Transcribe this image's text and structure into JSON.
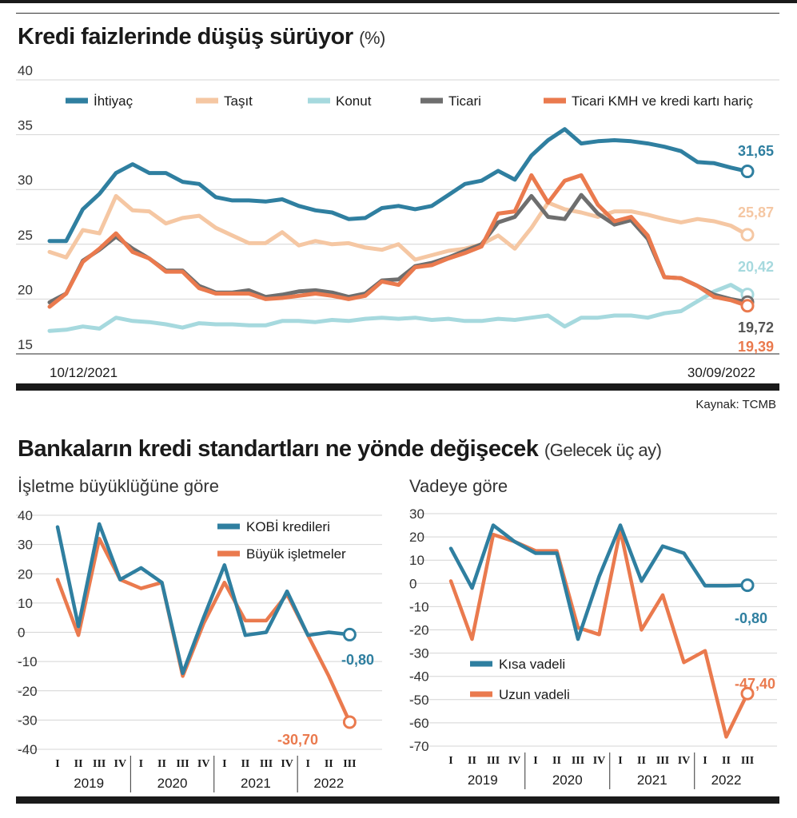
{
  "colors": {
    "ihtiyac": "#2f7fa0",
    "tasit": "#f5c7a3",
    "konut": "#a6d9de",
    "ticari": "#6e6e6e",
    "ticari_kmh": "#ea7a4e",
    "kobi": "#2f7fa0",
    "buyuk": "#ea7a4e",
    "kisa": "#2f7fa0",
    "uzun": "#ea7a4e"
  },
  "header": {
    "title1": "Kredi faizlerinde düşüş sürüyor",
    "unit1": "(%)",
    "source": "Kaynak: TCMB",
    "title2": "Bankaların kredi standartları ne yönde değişecek",
    "note2": "(Gelecek üç ay)",
    "sub_left": "İşletme büyüklüğüne göre",
    "sub_right": "Vadeye göre"
  },
  "chart_data": [
    {
      "type": "line",
      "title": "Kredi faizlerinde düşüş sürüyor (%)",
      "x_start_label": "10/12/2021",
      "x_end_label": "30/09/2022",
      "ylim": [
        15,
        40
      ],
      "y_ticks": [
        "40",
        "35",
        "30",
        "25",
        "20",
        "15"
      ],
      "legend": "top",
      "series": [
        {
          "key": "ihtiyac",
          "name": "İhtiyaç",
          "end_label": "31,65",
          "values": [
            25.3,
            25.3,
            28.2,
            29.6,
            31.5,
            32.3,
            31.5,
            31.5,
            30.7,
            30.5,
            29.3,
            29.0,
            29.0,
            28.9,
            29.1,
            28.5,
            28.1,
            27.9,
            27.3,
            27.4,
            28.3,
            28.5,
            28.2,
            28.5,
            29.5,
            30.5,
            30.8,
            31.7,
            30.9,
            33.1,
            34.5,
            35.5,
            34.2,
            34.4,
            34.5,
            34.4,
            34.2,
            33.9,
            33.5,
            32.5,
            32.4,
            32.0,
            31.65
          ]
        },
        {
          "key": "tasit",
          "name": "Taşıt",
          "end_label": "25,87",
          "values": [
            24.3,
            23.8,
            26.3,
            26.0,
            29.4,
            28.1,
            28.0,
            26.9,
            27.4,
            27.6,
            26.5,
            25.8,
            25.1,
            25.1,
            26.1,
            24.9,
            25.3,
            25.0,
            25.1,
            24.7,
            24.5,
            25.0,
            23.6,
            24.0,
            24.4,
            24.6,
            25.0,
            25.8,
            24.6,
            26.5,
            28.8,
            28.2,
            27.9,
            27.5,
            28.0,
            28.0,
            27.7,
            27.3,
            27.0,
            27.3,
            27.1,
            26.7,
            25.87
          ]
        },
        {
          "key": "konut",
          "name": "Konut",
          "end_label": "20,42",
          "values": [
            17.1,
            17.2,
            17.5,
            17.3,
            18.3,
            18.0,
            17.9,
            17.7,
            17.4,
            17.8,
            17.7,
            17.7,
            17.6,
            17.6,
            18.0,
            18.0,
            17.9,
            18.1,
            18.0,
            18.2,
            18.3,
            18.2,
            18.3,
            18.1,
            18.2,
            18.0,
            18.0,
            18.2,
            18.1,
            18.3,
            18.5,
            17.5,
            18.3,
            18.3,
            18.5,
            18.5,
            18.3,
            18.7,
            18.9,
            19.8,
            20.7,
            21.3,
            20.42
          ]
        },
        {
          "key": "ticari",
          "name": "Ticari",
          "end_label": "19,72",
          "values": [
            19.7,
            20.5,
            23.5,
            24.5,
            25.7,
            24.6,
            23.7,
            22.6,
            22.6,
            21.2,
            20.6,
            20.6,
            20.8,
            20.2,
            20.4,
            20.7,
            20.8,
            20.6,
            20.2,
            20.5,
            21.7,
            21.8,
            23.0,
            23.3,
            23.8,
            24.4,
            25.0,
            27.0,
            27.5,
            29.4,
            27.5,
            27.3,
            29.5,
            27.8,
            26.8,
            27.2,
            25.5,
            22.0,
            21.9,
            21.2,
            20.4,
            20.0,
            19.72
          ]
        },
        {
          "key": "ticari_kmh",
          "name": "Ticari KMH ve kredi kartı hariç",
          "end_label": "19,39",
          "values": [
            19.3,
            20.5,
            23.4,
            24.6,
            26.0,
            24.3,
            23.7,
            22.5,
            22.5,
            21.0,
            20.5,
            20.5,
            20.5,
            20.0,
            20.1,
            20.3,
            20.5,
            20.3,
            20.0,
            20.3,
            21.6,
            21.3,
            22.9,
            23.1,
            23.7,
            24.2,
            24.8,
            27.8,
            28.0,
            31.3,
            28.8,
            30.8,
            31.3,
            28.6,
            27.1,
            27.5,
            25.8,
            22.0,
            21.9,
            21.2,
            20.2,
            19.9,
            19.39
          ]
        }
      ]
    },
    {
      "type": "line",
      "title": "İşletme büyüklüğüne göre",
      "ylim": [
        -40,
        40
      ],
      "y_ticks": [
        "40",
        "30",
        "20",
        "10",
        "0",
        "-10",
        "-20",
        "-30",
        "-40"
      ],
      "categories": [
        "I",
        "II",
        "III",
        "IV",
        "I",
        "II",
        "III",
        "IV",
        "I",
        "II",
        "III",
        "IV",
        "I",
        "II",
        "III"
      ],
      "years": [
        "2019",
        "2020",
        "2021",
        "2022"
      ],
      "legend": "top-right",
      "series": [
        {
          "key": "kobi",
          "name": "KOBİ kredileri",
          "end_label": "-0,80",
          "values": [
            36,
            2,
            37,
            18,
            22,
            17,
            -14,
            5,
            23,
            -1,
            0,
            14,
            -1,
            0,
            -0.8
          ]
        },
        {
          "key": "buyuk",
          "name": "Büyük işletmeler",
          "end_label": "-30,70",
          "values": [
            18,
            -1,
            32,
            18,
            15,
            17,
            -15,
            3,
            17,
            4,
            4,
            13,
            -1,
            -15,
            -30.7
          ]
        }
      ]
    },
    {
      "type": "line",
      "title": "Vadeye göre",
      "ylim": [
        -70,
        30
      ],
      "y_ticks": [
        "30",
        "20",
        "10",
        "0",
        "-10",
        "-20",
        "-30",
        "-40",
        "-50",
        "-60",
        "-70"
      ],
      "categories": [
        "I",
        "II",
        "III",
        "IV",
        "I",
        "II",
        "III",
        "IV",
        "I",
        "II",
        "III",
        "IV",
        "I",
        "II",
        "III"
      ],
      "years": [
        "2019",
        "2020",
        "2021",
        "2022"
      ],
      "legend": "middle-left",
      "series": [
        {
          "key": "kisa",
          "name": "Kısa vadeli",
          "end_label": "-0,80",
          "values": [
            15,
            -2,
            25,
            18,
            13,
            13,
            -24,
            3,
            25,
            1,
            16,
            13,
            -1,
            -1,
            -0.8
          ]
        },
        {
          "key": "uzun",
          "name": "Uzun vadeli",
          "end_label": "-47,40",
          "values": [
            1,
            -24,
            21,
            18,
            14,
            14,
            -19,
            -22,
            23,
            -20,
            -5,
            -34,
            -29,
            -66,
            -47.4
          ]
        }
      ]
    }
  ]
}
